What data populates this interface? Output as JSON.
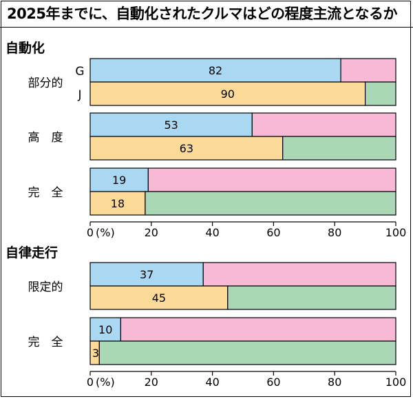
{
  "title": "2025年までに、自動化されたクルマはどの程度主流となるか",
  "colors": {
    "g_value": "#aad8f2",
    "g_rest": "#f7b9d6",
    "j_value": "#fbd996",
    "j_rest": "#aad7b6",
    "stroke": "#000000"
  },
  "chart_data": [
    {
      "type": "bar",
      "orientation": "horizontal",
      "stacked": true,
      "section_label": "自動化",
      "xlim": [
        0,
        100
      ],
      "xticks": [
        "0",
        "20",
        "40",
        "60",
        "80",
        "100"
      ],
      "unit_label": "(%)",
      "series_labels": [
        "G",
        "J"
      ],
      "groups": [
        {
          "label": "部分的",
          "G": 82,
          "J": 90
        },
        {
          "label": "高　度",
          "G": 53,
          "J": 63
        },
        {
          "label": "完　全",
          "G": 19,
          "J": 18
        }
      ]
    },
    {
      "type": "bar",
      "orientation": "horizontal",
      "stacked": true,
      "section_label": "自律走行",
      "xlim": [
        0,
        100
      ],
      "xticks": [
        "0",
        "20",
        "40",
        "60",
        "80",
        "100"
      ],
      "unit_label": "(%)",
      "groups": [
        {
          "label": "限定的",
          "G": 37,
          "J": 45
        },
        {
          "label": "完　全",
          "G": 10,
          "J": 3
        }
      ]
    }
  ]
}
